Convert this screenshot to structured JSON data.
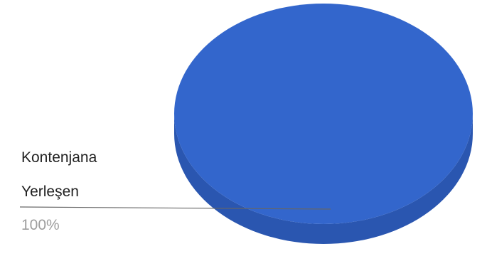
{
  "chart_data": {
    "type": "pie",
    "three_d": true,
    "slices": [
      {
        "label_lines": [
          "Kontenjana",
          "Yerleşen"
        ],
        "percent_label": "100%",
        "value": 100,
        "color": "#3366cc",
        "side_color": "#2a56b0"
      }
    ],
    "legend": "none"
  }
}
